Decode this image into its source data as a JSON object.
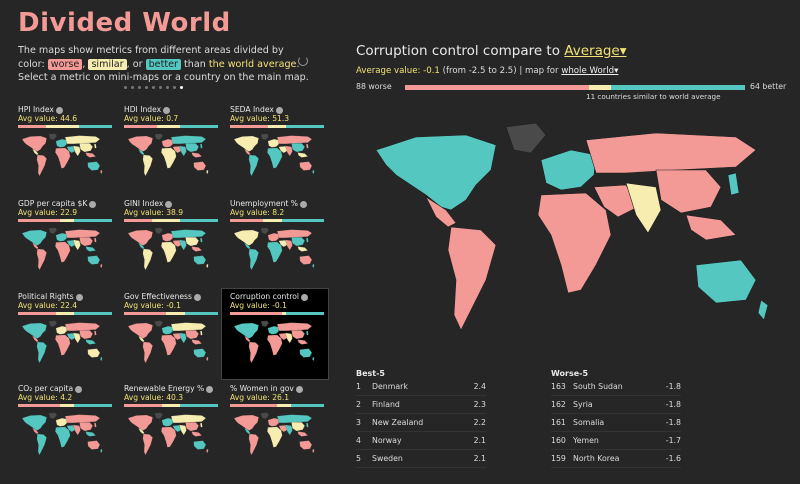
{
  "app": {
    "title": "Divided World",
    "intro_pre": "The maps show metrics from different areas divided by color:",
    "chip_worse": "worse",
    "chip_similar": "similar",
    "chip_better": "better",
    "intro_mid": "than",
    "intro_hl": "the world average",
    "intro_post": ". Select a metric on mini-maps or a country on the main map.",
    "sep1": ",",
    "sep2": ", or"
  },
  "colors": {
    "worse": "#f39a96",
    "similar": "#f7edb0",
    "better": "#54c7c0",
    "no_data": "#4a4a4a"
  },
  "mini_maps": [
    {
      "label": "HPI Index",
      "avg": "Avg value: 44.6",
      "selected": false,
      "scheme": [
        0.3,
        0.35,
        0.35
      ]
    },
    {
      "label": "HDI Index",
      "avg": "Avg value: 0.7",
      "selected": false,
      "scheme": [
        0.35,
        0.25,
        0.4
      ]
    },
    {
      "label": "SEDA Index",
      "avg": "Avg value: 51.3",
      "selected": false,
      "scheme": [
        0.4,
        0.2,
        0.4
      ]
    },
    {
      "label": "GDP per capita $K",
      "avg": "Avg value: 22.9",
      "selected": false,
      "scheme": [
        0.45,
        0.15,
        0.4
      ]
    },
    {
      "label": "GINI Index",
      "avg": "Avg value: 38.9",
      "selected": false,
      "scheme": [
        0.3,
        0.3,
        0.4
      ]
    },
    {
      "label": "Unemployment %",
      "avg": "Avg value: 8.2",
      "selected": false,
      "scheme": [
        0.35,
        0.2,
        0.45
      ]
    },
    {
      "label": "Political Rights",
      "avg": "Avg value: 22.4",
      "selected": false,
      "scheme": [
        0.4,
        0.2,
        0.4
      ]
    },
    {
      "label": "Gov Effectiveness",
      "avg": "Avg value: -0.1",
      "selected": false,
      "scheme": [
        0.45,
        0.2,
        0.35
      ]
    },
    {
      "label": "Corruption control",
      "avg": "Avg value: -0.1",
      "selected": true,
      "scheme": [
        0.55,
        0.05,
        0.4
      ]
    },
    {
      "label": "CO₂ per capita",
      "avg": "Avg value: 4.2",
      "selected": false,
      "scheme": [
        0.45,
        0.15,
        0.4
      ]
    },
    {
      "label": "Renewable Energy %",
      "avg": "Avg value: 40.3",
      "selected": false,
      "scheme": [
        0.4,
        0.2,
        0.4
      ]
    },
    {
      "label": "% Women in gov",
      "avg": "Avg value: 26.1",
      "selected": false,
      "scheme": [
        0.5,
        0.15,
        0.35
      ]
    }
  ],
  "main": {
    "title_pre": "Corruption control compare to",
    "title_sel": "Average▾",
    "avg_label": "Average value: -0.1",
    "avg_range": "(from -2.5 to 2.5) | map for",
    "avg_region": "whole World▾",
    "count_worse": "88 worse",
    "count_better": "64 better",
    "similar_note": "11 countries similar to world average",
    "worse_n": 88,
    "similar_n": 11,
    "better_n": 64
  },
  "best": {
    "heading": "Best-5",
    "rows": [
      {
        "rank": "1",
        "name": "Denmark",
        "value": "2.4"
      },
      {
        "rank": "2",
        "name": "Finland",
        "value": "2.3"
      },
      {
        "rank": "3",
        "name": "New Zealand",
        "value": "2.2"
      },
      {
        "rank": "4",
        "name": "Norway",
        "value": "2.1"
      },
      {
        "rank": "5",
        "name": "Sweden",
        "value": "2.1"
      }
    ]
  },
  "worst": {
    "heading": "Worse-5",
    "rows": [
      {
        "rank": "163",
        "name": "South Sudan",
        "value": "-1.8"
      },
      {
        "rank": "162",
        "name": "Syria",
        "value": "-1.8"
      },
      {
        "rank": "161",
        "name": "Somalia",
        "value": "-1.8"
      },
      {
        "rank": "160",
        "name": "Yemen",
        "value": "-1.7"
      },
      {
        "rank": "159",
        "name": "North Korea",
        "value": "-1.6"
      }
    ]
  }
}
